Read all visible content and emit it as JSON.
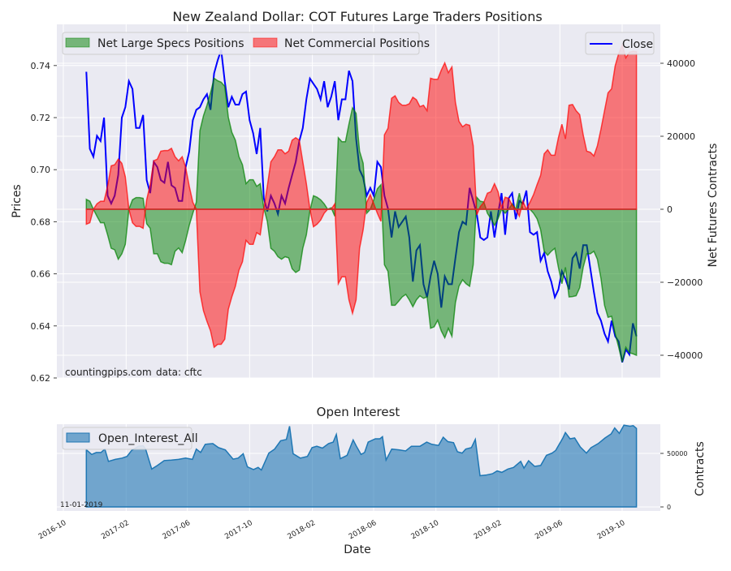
{
  "chart_data": [
    {
      "type": "line+area",
      "title": "New Zealand Dollar: COT Futures Large Traders Positions",
      "xlabel": "",
      "ylabel_left": "Prices",
      "ylabel_right": "Net Futures Contracts",
      "ylim_left": [
        0.62,
        0.755
      ],
      "ylim_right": [
        -46000,
        47000
      ],
      "yticks_left": [
        "0.62",
        "0.64",
        "0.66",
        "0.68",
        "0.70",
        "0.72",
        "0.74"
      ],
      "yticks_right": [
        "−40000",
        "−20000",
        "0",
        "20000",
        "40000"
      ],
      "grid": true,
      "legend_left": [
        "Net Large Specs Positions",
        "Net Commercial Positions"
      ],
      "legend_right": [
        "Close"
      ],
      "annotations": [
        "countingpips.com",
        "data: cftc"
      ],
      "x_start": "2016-11-15",
      "x_end": "2019-10-29",
      "x_interval": "weekly",
      "colors": {
        "specs": "#008000",
        "commercial": "#ff0000",
        "close": "#0000ff"
      },
      "series": [
        {
          "name": "Close",
          "axis": "left",
          "values": [
            0.7376,
            0.708,
            0.705,
            0.713,
            0.711,
            0.72,
            0.69,
            0.687,
            0.69,
            0.698,
            0.72,
            0.724,
            0.734,
            0.731,
            0.716,
            0.716,
            0.721,
            0.696,
            0.691,
            0.703,
            0.701,
            0.696,
            0.695,
            0.703,
            0.694,
            0.693,
            0.688,
            0.688,
            0.701,
            0.707,
            0.719,
            0.723,
            0.724,
            0.727,
            0.729,
            0.723,
            0.737,
            0.742,
            0.746,
            0.734,
            0.724,
            0.728,
            0.725,
            0.725,
            0.729,
            0.73,
            0.719,
            0.714,
            0.706,
            0.716,
            0.689,
            0.684,
            0.69,
            0.687,
            0.683,
            0.69,
            0.687,
            0.693,
            0.698,
            0.703,
            0.711,
            0.716,
            0.727,
            0.735,
            0.733,
            0.731,
            0.727,
            0.734,
            0.724,
            0.728,
            0.734,
            0.719,
            0.727,
            0.727,
            0.738,
            0.734,
            0.712,
            0.7,
            0.697,
            0.69,
            0.693,
            0.69,
            0.703,
            0.701,
            0.69,
            0.685,
            0.674,
            0.684,
            0.678,
            0.68,
            0.682,
            0.674,
            0.657,
            0.669,
            0.671,
            0.656,
            0.651,
            0.659,
            0.665,
            0.66,
            0.647,
            0.659,
            0.656,
            0.656,
            0.666,
            0.676,
            0.68,
            0.679,
            0.693,
            0.688,
            0.683,
            0.674,
            0.673,
            0.674,
            0.684,
            0.674,
            0.683,
            0.691,
            0.675,
            0.689,
            0.691,
            0.681,
            0.688,
            0.687,
            0.692,
            0.676,
            0.675,
            0.676,
            0.665,
            0.668,
            0.661,
            0.657,
            0.651,
            0.654,
            0.661,
            0.658,
            0.654,
            0.666,
            0.668,
            0.662,
            0.671,
            0.671,
            0.662,
            0.653,
            0.645,
            0.642,
            0.637,
            0.634,
            0.642,
            0.636,
            0.634,
            0.626,
            0.631,
            0.629,
            0.641,
            0.636
          ]
        },
        {
          "name": "Net Large Specs Positions",
          "axis": "right",
          "values": [
            2700,
            2200,
            0,
            -1900,
            -3700,
            -3700,
            -7000,
            -10700,
            -11100,
            -13700,
            -12200,
            -9600,
            0,
            2600,
            3200,
            3200,
            3000,
            -4000,
            -5200,
            -12200,
            -12200,
            -14400,
            -14800,
            -14800,
            -15200,
            -11500,
            -10600,
            -11900,
            -8500,
            -4400,
            -1100,
            1900,
            21500,
            25600,
            28500,
            31900,
            35900,
            35200,
            34800,
            33700,
            25200,
            21100,
            18900,
            14400,
            12200,
            7000,
            8100,
            8100,
            6300,
            7000,
            400,
            -3300,
            -10700,
            -11500,
            -13000,
            -13700,
            -13000,
            -13300,
            -16300,
            -17300,
            -16700,
            -10700,
            -7000,
            -400,
            3700,
            3300,
            2600,
            1500,
            0,
            400,
            -1900,
            19600,
            18500,
            18500,
            23300,
            27800,
            26300,
            15900,
            12600,
            -1100,
            0,
            2600,
            5600,
            6700,
            -15200,
            -17000,
            -26300,
            -26300,
            -25200,
            -24000,
            -23300,
            -24800,
            -26700,
            -24800,
            -23700,
            -24400,
            -24000,
            -32600,
            -32200,
            -30400,
            -33300,
            -35200,
            -32600,
            -34800,
            -25600,
            -21100,
            -19300,
            -20400,
            -21100,
            -15200,
            3300,
            2200,
            2000,
            -1100,
            -2600,
            -4400,
            -2600,
            0,
            -1100,
            0,
            1500,
            0,
            4400,
            0,
            0,
            0,
            -1100,
            -2600,
            -5600,
            -11500,
            -12600,
            -11500,
            -10700,
            -15900,
            -20400,
            -15900,
            -24000,
            -23900,
            -23700,
            -21500,
            -15900,
            -12200,
            -12200,
            -11500,
            -13700,
            -18900,
            -26300,
            -29600,
            -29300,
            -34100,
            -37800,
            -41900,
            -37800,
            -39300,
            -39600,
            -40000
          ]
        },
        {
          "name": "Net Commercial Positions",
          "axis": "right",
          "values": [
            -4100,
            -3700,
            0,
            1500,
            2200,
            2200,
            6300,
            11900,
            12200,
            13700,
            12600,
            8900,
            0,
            -3700,
            -4700,
            -4700,
            -5200,
            2600,
            6700,
            13300,
            13700,
            15900,
            16100,
            16100,
            16700,
            14400,
            13300,
            14400,
            11500,
            6300,
            1900,
            0,
            -22600,
            -27800,
            -30700,
            -33300,
            -37800,
            -37000,
            -37000,
            -35600,
            -27400,
            -24000,
            -21100,
            -16700,
            -14400,
            -8500,
            -9600,
            -9600,
            -6400,
            -7000,
            0,
            6300,
            13000,
            14400,
            16300,
            16300,
            15200,
            15900,
            18900,
            19600,
            18900,
            13000,
            7000,
            0,
            -4800,
            -4100,
            -3000,
            -1100,
            0,
            0,
            1500,
            -20400,
            -18500,
            -18500,
            -24800,
            -28500,
            -24800,
            -10700,
            -5600,
            1900,
            4000,
            1500,
            -1100,
            -3300,
            20400,
            22200,
            30400,
            31100,
            29300,
            28500,
            28500,
            28900,
            30700,
            30000,
            28100,
            28500,
            27000,
            35900,
            35600,
            35600,
            38100,
            40100,
            37400,
            39000,
            29300,
            24100,
            22600,
            23300,
            23000,
            17400,
            -1500,
            700,
            1900,
            4400,
            4800,
            7000,
            4800,
            400,
            3300,
            3000,
            1100,
            0,
            -1900,
            2200,
            0,
            1900,
            4000,
            6700,
            9300,
            15200,
            16300,
            14800,
            14800,
            19600,
            23300,
            19300,
            28500,
            28700,
            27000,
            25900,
            20400,
            15900,
            15600,
            14600,
            17400,
            21900,
            27000,
            31900,
            33000,
            39300,
            42600,
            45000,
            41500,
            43000,
            43300,
            43200
          ]
        }
      ]
    },
    {
      "type": "area",
      "title": "Open Interest",
      "xlabel": "Date",
      "ylabel_right": "Contracts",
      "ylim_right": [
        -3000,
        80000
      ],
      "yticks_right": [
        "0",
        "50000"
      ],
      "xticks": [
        "2016-10",
        "2017-02",
        "2017-06",
        "2017-10",
        "2018-02",
        "2018-06",
        "2018-10",
        "2019-02",
        "2019-06",
        "2019-10"
      ],
      "legend": [
        "Open_Interest_All"
      ],
      "annotation": "11-01-2019",
      "color": "#1f77b4",
      "x_unit": "weeks since 2016-11-15",
      "points": [
        [
          0,
          53300
        ],
        [
          1.5,
          49000
        ],
        [
          2.8,
          50800
        ],
        [
          4.1,
          50800
        ],
        [
          5.2,
          54000
        ],
        [
          6.2,
          42600
        ],
        [
          8.1,
          44400
        ],
        [
          10,
          45600
        ],
        [
          11.4,
          47200
        ],
        [
          12.7,
          52800
        ],
        [
          14.6,
          56700
        ],
        [
          15.9,
          57200
        ],
        [
          16.6,
          54000
        ],
        [
          18.3,
          35400
        ],
        [
          19.9,
          38700
        ],
        [
          21.8,
          43300
        ],
        [
          23.8,
          43800
        ],
        [
          25.8,
          44400
        ],
        [
          27.8,
          45600
        ],
        [
          29.7,
          44400
        ],
        [
          30.8,
          54000
        ],
        [
          32,
          50800
        ],
        [
          33.3,
          58500
        ],
        [
          35.4,
          59200
        ],
        [
          37,
          55400
        ],
        [
          38.9,
          53300
        ],
        [
          41.1,
          44600
        ],
        [
          42.5,
          45600
        ],
        [
          43.9,
          49700
        ],
        [
          45.1,
          37400
        ],
        [
          46.8,
          34900
        ],
        [
          48.1,
          36900
        ],
        [
          49,
          34400
        ],
        [
          51.1,
          50300
        ],
        [
          52.7,
          54000
        ],
        [
          54.4,
          61800
        ],
        [
          56,
          63000
        ],
        [
          56.9,
          75400
        ],
        [
          57.9,
          49700
        ],
        [
          59.9,
          45600
        ],
        [
          61.9,
          47200
        ],
        [
          63.2,
          55400
        ],
        [
          64.5,
          56700
        ],
        [
          66.1,
          54900
        ],
        [
          67.8,
          59200
        ],
        [
          69.1,
          60500
        ],
        [
          70,
          67700
        ],
        [
          71.1,
          45100
        ],
        [
          73,
          48200
        ],
        [
          74.7,
          62600
        ],
        [
          75.6,
          56700
        ],
        [
          76.9,
          49000
        ],
        [
          77.9,
          50800
        ],
        [
          78.9,
          60500
        ],
        [
          80.9,
          63600
        ],
        [
          82.2,
          63600
        ],
        [
          82.9,
          65600
        ],
        [
          83.9,
          43800
        ],
        [
          85.5,
          54000
        ],
        [
          87.5,
          53300
        ],
        [
          89.4,
          52300
        ],
        [
          91,
          56700
        ],
        [
          93.4,
          56700
        ],
        [
          95.3,
          60500
        ],
        [
          96.7,
          58500
        ],
        [
          98.6,
          57400
        ],
        [
          99.9,
          65100
        ],
        [
          101.2,
          61000
        ],
        [
          102.8,
          60000
        ],
        [
          103.9,
          51500
        ],
        [
          105.2,
          50300
        ],
        [
          106.2,
          54000
        ],
        [
          107.8,
          55400
        ],
        [
          108.9,
          63000
        ],
        [
          110.2,
          29200
        ],
        [
          111.8,
          29700
        ],
        [
          113.7,
          31000
        ],
        [
          115,
          33600
        ],
        [
          116.3,
          32300
        ],
        [
          118,
          35400
        ],
        [
          119.6,
          36900
        ],
        [
          121.6,
          42600
        ],
        [
          122.5,
          36200
        ],
        [
          123.8,
          43100
        ],
        [
          125.5,
          37900
        ],
        [
          127.2,
          38700
        ],
        [
          128.8,
          48200
        ],
        [
          130.4,
          50300
        ],
        [
          131.4,
          52800
        ],
        [
          133.4,
          64400
        ],
        [
          134.1,
          69500
        ],
        [
          135.4,
          63600
        ],
        [
          136.7,
          64400
        ],
        [
          138.3,
          55900
        ],
        [
          140,
          50300
        ],
        [
          141.3,
          55400
        ],
        [
          143.3,
          59200
        ],
        [
          145.2,
          64400
        ],
        [
          146.9,
          68200
        ],
        [
          147.9,
          73800
        ],
        [
          149.2,
          68700
        ],
        [
          150.5,
          76400
        ],
        [
          152.2,
          75400
        ],
        [
          153.1,
          75900
        ],
        [
          154,
          73300
        ]
      ]
    }
  ]
}
